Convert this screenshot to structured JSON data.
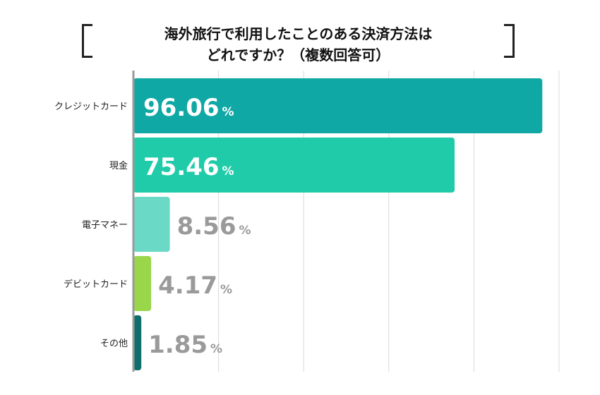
{
  "title_lines": [
    "海外旅行で利用したことのある決済方法は",
    "どれですか？（複数回答可）"
  ],
  "chart_data": {
    "type": "bar",
    "orientation": "horizontal",
    "title": "海外旅行で利用したことのある決済方法はどれですか？（複数回答可）",
    "categories": [
      "クレジットカード",
      "現金",
      "電子マネー",
      "デビットカード",
      "その他"
    ],
    "values": [
      96.06,
      75.46,
      8.56,
      4.17,
      1.85
    ],
    "value_labels": [
      "96.06",
      "75.46",
      "8.56",
      "4.17",
      "1.85"
    ],
    "unit": "%",
    "colors": [
      "#10a8a4",
      "#20cba9",
      "#6ad9c6",
      "#9ad64a",
      "#0e6d6d"
    ],
    "label_colors": [
      "#ffffff",
      "#ffffff",
      "#9a9a9a",
      "#9a9a9a",
      "#9a9a9a"
    ],
    "xlim": [
      0,
      100
    ],
    "grid": true,
    "legend": "none"
  }
}
